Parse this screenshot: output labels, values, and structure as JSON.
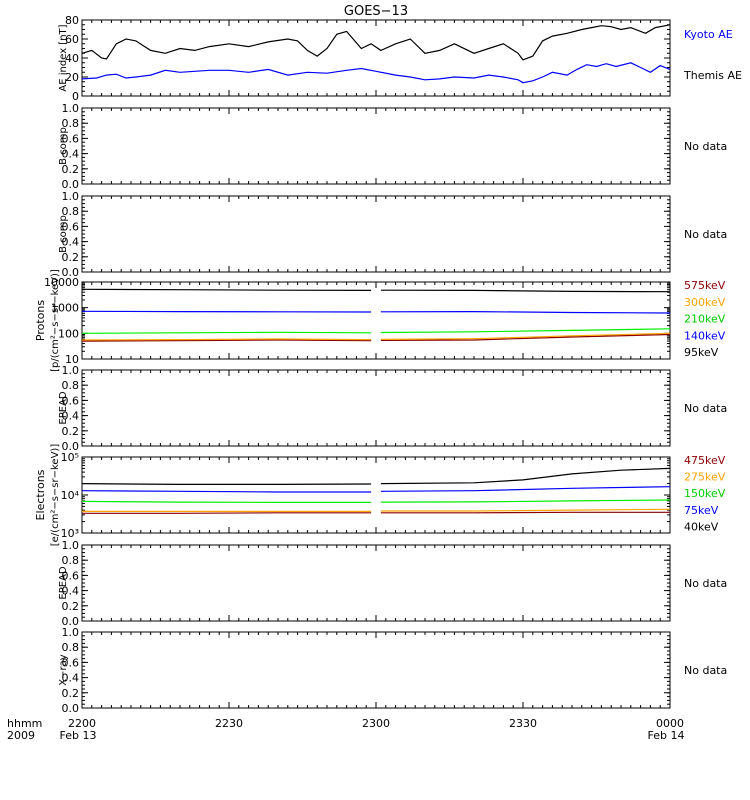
{
  "title": "GOES−13",
  "x_axis": {
    "ticks": [
      {
        "label": "2200",
        "sub": "Feb 13",
        "t": 0
      },
      {
        "label": "2230",
        "sub": "",
        "t": 30
      },
      {
        "label": "2300",
        "sub": "",
        "t": 60
      },
      {
        "label": "2330",
        "sub": "",
        "t": 90
      },
      {
        "label": "0000",
        "sub": "Feb 14",
        "t": 120
      }
    ],
    "corner_label_1": "hhmm",
    "corner_label_2": "2009",
    "range": [
      0,
      120
    ]
  },
  "colors": {
    "black": "#000000",
    "blue": "#0000ff",
    "darkred": "#8b0000",
    "orange": "#ffa500",
    "green": "#00ee00",
    "redorange": "#ff4500"
  },
  "chart_data": [
    {
      "type": "line",
      "panel": "ae",
      "ylabel": "AE index [nT]",
      "ylim": [
        0,
        80
      ],
      "yticks": [
        "0",
        "20",
        "40",
        "60",
        "80"
      ],
      "yticks_values": [
        0,
        20,
        40,
        60,
        80
      ],
      "series": [
        {
          "name": "Kyoto AE",
          "color": "#000000",
          "x": [
            0,
            2,
            4,
            5,
            7,
            9,
            11,
            14,
            17,
            20,
            23,
            26,
            30,
            34,
            38,
            42,
            44,
            46,
            48,
            50,
            52,
            54,
            57,
            59,
            61,
            64,
            67,
            70,
            73,
            76,
            80,
            83,
            86,
            89,
            90,
            92,
            94,
            96,
            99,
            102,
            104,
            106,
            108,
            110,
            112,
            115,
            117,
            120
          ],
          "y": [
            45,
            48,
            40,
            39,
            55,
            60,
            58,
            48,
            45,
            50,
            48,
            52,
            55,
            52,
            57,
            60,
            58,
            48,
            42,
            50,
            65,
            68,
            50,
            55,
            48,
            55,
            60,
            45,
            48,
            55,
            45,
            50,
            55,
            45,
            38,
            42,
            58,
            63,
            66,
            70,
            72,
            74,
            73,
            70,
            72,
            66,
            72,
            75
          ]
        },
        {
          "name": "Themis AE",
          "color": "#0000ff",
          "x": [
            0,
            3,
            5,
            7,
            9,
            11,
            14,
            17,
            20,
            23,
            26,
            30,
            34,
            38,
            42,
            46,
            50,
            54,
            57,
            60,
            64,
            67,
            70,
            73,
            76,
            80,
            83,
            86,
            89,
            90,
            92,
            94,
            96,
            99,
            101,
            103,
            105,
            107,
            109,
            112,
            114,
            116,
            118,
            120
          ],
          "y": [
            18,
            19,
            22,
            23,
            19,
            20,
            22,
            27,
            25,
            26,
            27,
            27,
            25,
            28,
            22,
            25,
            24,
            27,
            29,
            26,
            22,
            20,
            17,
            18,
            20,
            19,
            22,
            20,
            17,
            14,
            16,
            20,
            25,
            22,
            28,
            33,
            31,
            34,
            31,
            35,
            30,
            25,
            32,
            28
          ]
        }
      ],
      "legend": [
        "Kyoto AE",
        "Themis AE"
      ]
    },
    {
      "type": "line",
      "panel": "b1",
      "ylabel": "B comp",
      "ylim": [
        0,
        1
      ],
      "yticks": [
        "0.0",
        "0.2",
        "0.4",
        "0.6",
        "0.8",
        "1.0"
      ],
      "yticks_values": [
        0,
        0.2,
        0.4,
        0.6,
        0.8,
        1.0
      ],
      "status": "No data"
    },
    {
      "type": "line",
      "panel": "b2",
      "ylabel": "B comp",
      "ylim": [
        0,
        1
      ],
      "yticks": [
        "0.0",
        "0.2",
        "0.4",
        "0.6",
        "0.8",
        "1.0"
      ],
      "yticks_values": [
        0,
        0.2,
        0.4,
        0.6,
        0.8,
        1.0
      ],
      "status": "No data"
    },
    {
      "type": "line",
      "panel": "protons",
      "ylabel_1": "Protons",
      "ylabel_2": "[p/(cm²−s−sr−keV)]",
      "log": true,
      "ylim": [
        10,
        10000
      ],
      "yticks": [
        "10",
        "100",
        "1000",
        "10000"
      ],
      "yticks_values": [
        10,
        100,
        1000,
        10000
      ],
      "gap": [
        59,
        61
      ],
      "series": [
        {
          "name": "575keV",
          "color": "#8b0000",
          "x": [
            0,
            20,
            40,
            59,
            61,
            80,
            100,
            120
          ],
          "y": [
            50,
            52,
            55,
            52,
            53,
            55,
            72,
            90
          ]
        },
        {
          "name": "300keV",
          "color": "#ffa500",
          "x": [
            0,
            20,
            40,
            59,
            61,
            80,
            100,
            120
          ],
          "y": [
            55,
            57,
            60,
            57,
            58,
            62,
            80,
            100
          ]
        },
        {
          "name": "210keV",
          "color": "#00ee00",
          "x": [
            0,
            20,
            40,
            59,
            61,
            80,
            100,
            120
          ],
          "y": [
            100,
            105,
            110,
            105,
            108,
            115,
            130,
            150
          ]
        },
        {
          "name": "140keV",
          "color": "#0000ff",
          "x": [
            0,
            20,
            40,
            59,
            61,
            80,
            100,
            120
          ],
          "y": [
            720,
            700,
            690,
            680,
            690,
            700,
            650,
            620
          ]
        },
        {
          "name": "95keV",
          "color": "#000000",
          "x": [
            0,
            20,
            40,
            59,
            61,
            80,
            100,
            120
          ],
          "y": [
            5200,
            5000,
            4800,
            4700,
            4800,
            4700,
            4300,
            4200
          ]
        }
      ]
    },
    {
      "type": "line",
      "panel": "epead1",
      "ylabel": "EPEAD",
      "ylim": [
        0,
        1
      ],
      "yticks": [
        "0.0",
        "0.2",
        "0.4",
        "0.6",
        "0.8",
        "1.0"
      ],
      "yticks_values": [
        0,
        0.2,
        0.4,
        0.6,
        0.8,
        1.0
      ],
      "status": "No data"
    },
    {
      "type": "line",
      "panel": "electrons",
      "ylabel_1": "Electrons",
      "ylabel_2": "[e/(cm²−s−sr−keV)]",
      "log": true,
      "ylim": [
        1000,
        100000
      ],
      "yticks": [
        "10³",
        "10⁴",
        "10⁵"
      ],
      "yticks_values": [
        1000,
        10000,
        100000
      ],
      "gap": [
        59,
        61
      ],
      "series": [
        {
          "name": "475keV",
          "color": "#8b0000",
          "x": [
            0,
            20,
            40,
            59,
            61,
            80,
            100,
            120
          ],
          "y": [
            3300,
            3300,
            3400,
            3400,
            3400,
            3400,
            3500,
            3500
          ]
        },
        {
          "name": "275keV",
          "color": "#ffa500",
          "x": [
            0,
            20,
            40,
            59,
            61,
            80,
            100,
            120
          ],
          "y": [
            3700,
            3700,
            3700,
            3700,
            3800,
            3800,
            4000,
            4200
          ]
        },
        {
          "name": "150keV",
          "color": "#00ee00",
          "x": [
            0,
            20,
            40,
            59,
            61,
            80,
            100,
            120
          ],
          "y": [
            6800,
            6500,
            6400,
            6400,
            6500,
            6600,
            7000,
            7400
          ]
        },
        {
          "name": "75keV",
          "color": "#0000ff",
          "x": [
            0,
            20,
            40,
            59,
            61,
            80,
            100,
            120
          ],
          "y": [
            13000,
            12500,
            12000,
            12000,
            12500,
            13000,
            15000,
            16500
          ]
        },
        {
          "name": "40keV",
          "color": "#000000",
          "x": [
            0,
            20,
            40,
            59,
            61,
            80,
            90,
            100,
            110,
            120
          ],
          "y": [
            20000,
            19000,
            19000,
            19500,
            20000,
            21000,
            25000,
            36000,
            45000,
            50000
          ]
        }
      ]
    },
    {
      "type": "line",
      "panel": "epead2",
      "ylabel": "EPEAD",
      "ylim": [
        0,
        1
      ],
      "yticks": [
        "0.0",
        "0.2",
        "0.4",
        "0.6",
        "0.8",
        "1.0"
      ],
      "yticks_values": [
        0,
        0.2,
        0.4,
        0.6,
        0.8,
        1.0
      ],
      "status": "No data"
    },
    {
      "type": "line",
      "panel": "xray",
      "ylabel": "X−ray",
      "ylim": [
        0,
        1
      ],
      "yticks": [
        "0.0",
        "0.2",
        "0.4",
        "0.6",
        "0.8",
        "1.0"
      ],
      "yticks_values": [
        0,
        0.2,
        0.4,
        0.6,
        0.8,
        1.0
      ],
      "status": "No data"
    }
  ]
}
